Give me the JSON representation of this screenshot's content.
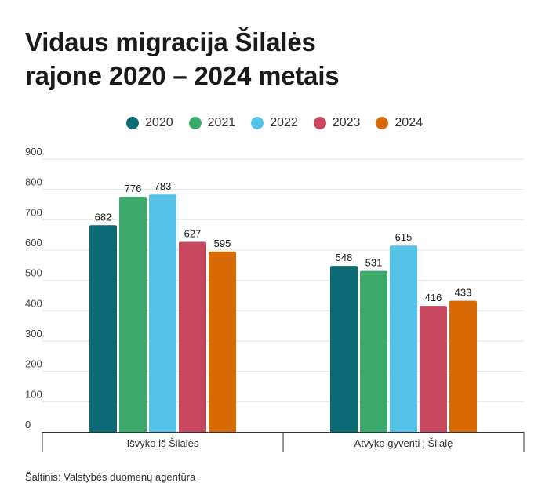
{
  "title": {
    "line1": "Vidaus migracija Šilalės",
    "line2": "rajone  2020 – 2024 metais"
  },
  "source": "Šaltinis: Valstybės duomenų agentūra",
  "chart_data": {
    "type": "bar",
    "categories": [
      "Išvyko iš Šilalės",
      "Atvyko gyventi į Šilalę"
    ],
    "series": [
      {
        "name": "2020",
        "color": "#0b6a73",
        "values": [
          682,
          548
        ]
      },
      {
        "name": "2021",
        "color": "#3aa96a",
        "values": [
          776,
          531
        ]
      },
      {
        "name": "2022",
        "color": "#55c3e8",
        "values": [
          783,
          615
        ]
      },
      {
        "name": "2023",
        "color": "#c8495f",
        "values": [
          627,
          416
        ]
      },
      {
        "name": "2024",
        "color": "#d86a05",
        "values": [
          595,
          433
        ]
      }
    ],
    "ylim": [
      0,
      900
    ],
    "yticks": [
      0,
      100,
      200,
      300,
      400,
      500,
      600,
      700,
      800,
      900
    ],
    "grid": true,
    "legend_position": "top-center",
    "data_labels": true
  }
}
